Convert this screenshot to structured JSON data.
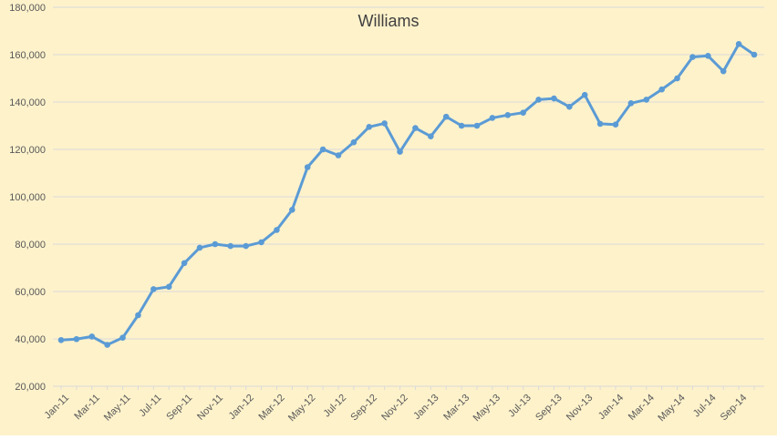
{
  "chart_data": {
    "type": "line",
    "title": "Williams",
    "xlabel": "",
    "ylabel": "",
    "ylim": [
      20000,
      180000
    ],
    "y_ticks": [
      20000,
      40000,
      60000,
      80000,
      100000,
      120000,
      140000,
      160000,
      180000
    ],
    "y_tick_labels": [
      "20,000",
      "40,000",
      "60,000",
      "80,000",
      "100,000",
      "120,000",
      "140,000",
      "160,000",
      "180,000"
    ],
    "x_tick_labels": [
      "Jan-11",
      "Mar-11",
      "May-11",
      "Jul-11",
      "Sep-11",
      "Nov-11",
      "Jan-12",
      "Mar-12",
      "May-12",
      "Jul-12",
      "Sep-12",
      "Nov-12",
      "Jan-13",
      "Mar-13",
      "May-13",
      "Jul-13",
      "Sep-13",
      "Nov-13",
      "Jan-14",
      "Mar-14",
      "May-14",
      "Jul-14",
      "Sep-14"
    ],
    "categories": [
      "Jan-11",
      "Feb-11",
      "Mar-11",
      "Apr-11",
      "May-11",
      "Jun-11",
      "Jul-11",
      "Aug-11",
      "Sep-11",
      "Oct-11",
      "Nov-11",
      "Dec-11",
      "Jan-12",
      "Feb-12",
      "Mar-12",
      "Apr-12",
      "May-12",
      "Jun-12",
      "Jul-12",
      "Aug-12",
      "Sep-12",
      "Oct-12",
      "Nov-12",
      "Dec-12",
      "Jan-13",
      "Feb-13",
      "Mar-13",
      "Apr-13",
      "May-13",
      "Jun-13",
      "Jul-13",
      "Aug-13",
      "Sep-13",
      "Oct-13",
      "Nov-13",
      "Dec-13",
      "Jan-14",
      "Feb-14",
      "Mar-14",
      "Apr-14",
      "May-14",
      "Jun-14",
      "Jul-14",
      "Aug-14",
      "Sep-14",
      "Oct-14"
    ],
    "series": [
      {
        "values": [
          39500,
          39900,
          41000,
          37500,
          40500,
          50000,
          61000,
          62000,
          72000,
          78500,
          80000,
          79200,
          79200,
          80800,
          86000,
          94500,
          112500,
          120000,
          117500,
          123000,
          129500,
          131000,
          119000,
          129000,
          125500,
          133800,
          130000,
          130000,
          133300,
          134500,
          135500,
          141000,
          141500,
          138000,
          143000,
          130800,
          130500,
          139500,
          141000,
          145300,
          150000,
          159000,
          159500,
          153000,
          164500,
          160000
        ],
        "color": "#5b9bd5"
      }
    ],
    "grid": true,
    "legend": "none",
    "background_color": "#fef2cb",
    "gridline_color": "#d9d9d9",
    "axis_line_color": "#d9d9d9",
    "tick_label_color": "#595959",
    "title_color": "#404040"
  }
}
